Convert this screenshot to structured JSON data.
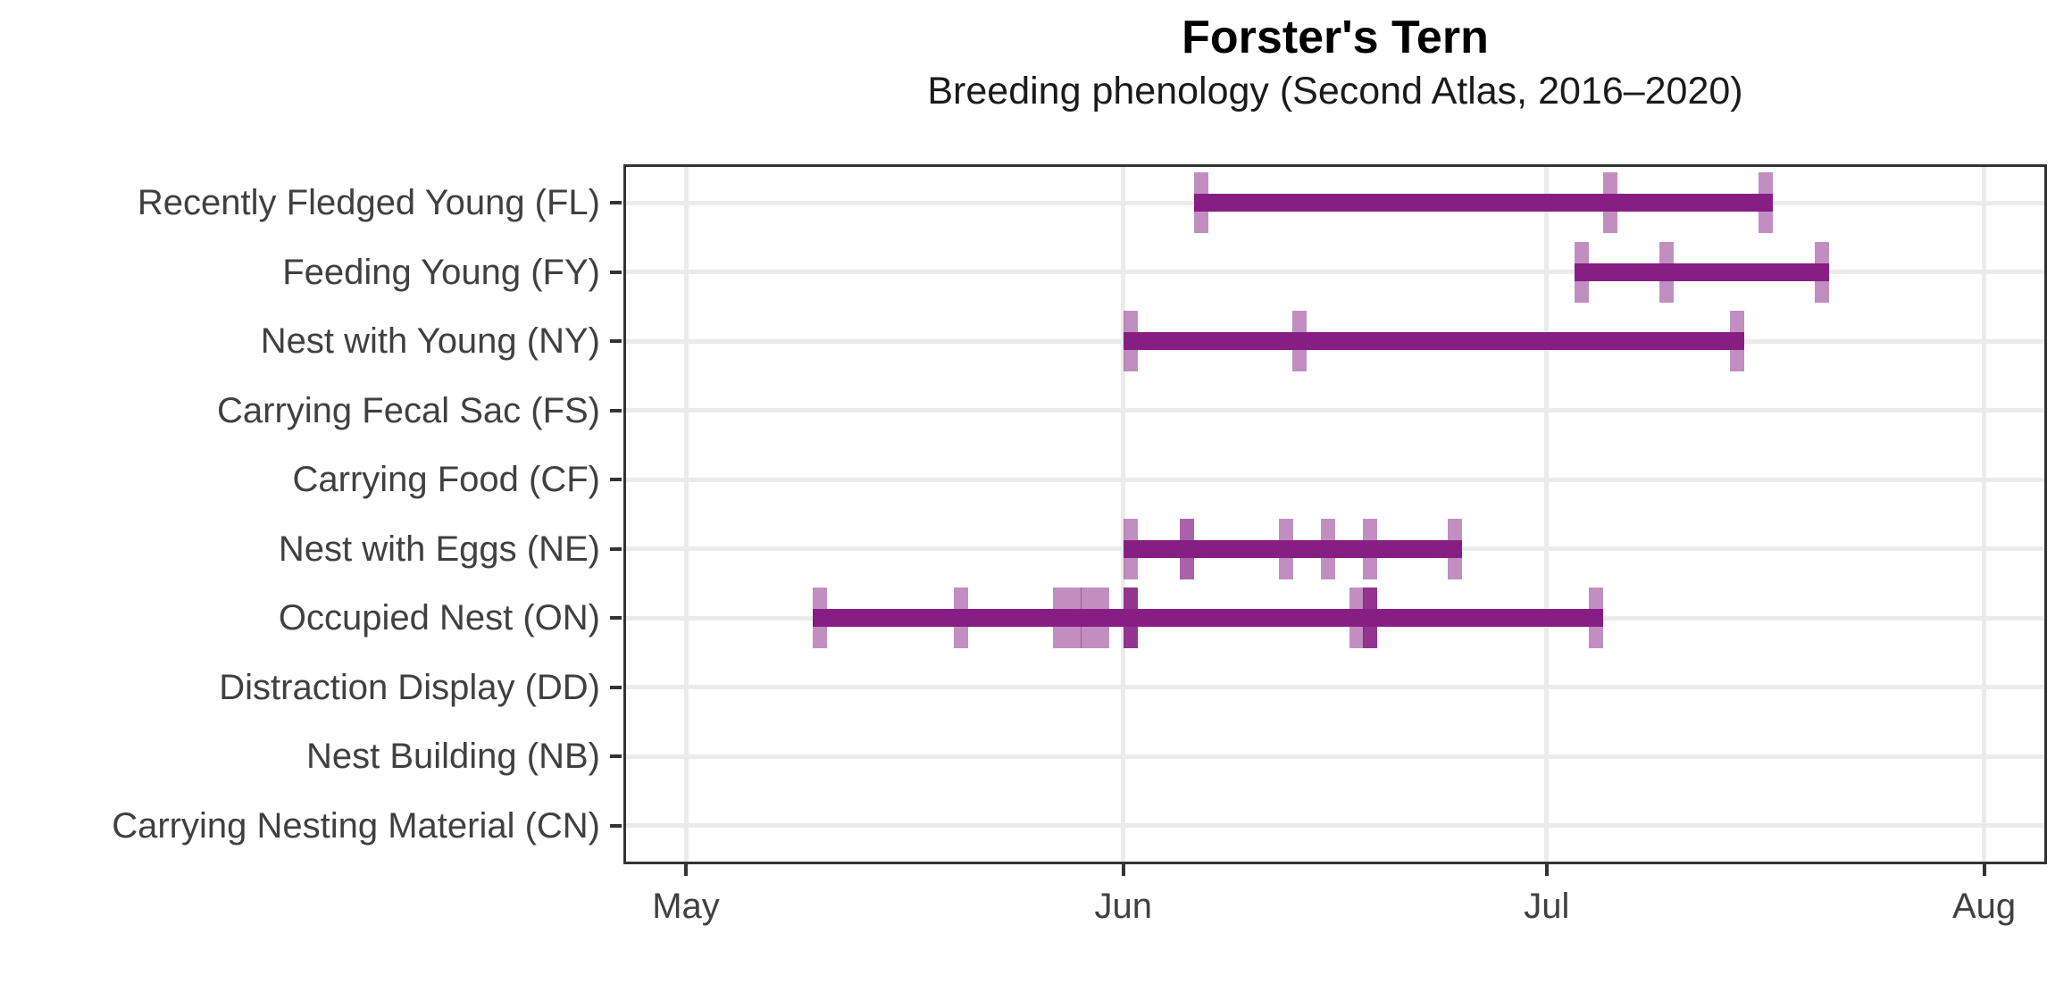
{
  "title": "Forster's Tern",
  "subtitle": "Breeding phenology (Second Atlas, 2016–2020)",
  "colors": {
    "bar": "#861E84",
    "observation_tick_base": "#861E84",
    "gridline": "#EBEBEB",
    "axis_line": "#333333",
    "axis_text": "#404040",
    "title_text": "#000000",
    "background": "#FFFFFF"
  },
  "chart_data": {
    "type": "bar",
    "subtype": "horizontal date-range (breeding phenology timeline)",
    "title": "Forster's Tern",
    "subtitle": "Breeding phenology (Second Atlas, 2016–2020)",
    "legend": "none",
    "x_axis": {
      "label": "",
      "tick_labels": [
        "May",
        "Jun",
        "Jul",
        "Aug"
      ],
      "range": [
        "late April",
        "early August"
      ],
      "gridlines": "vertical at month starts only"
    },
    "y_axis": {
      "label": "",
      "type": "category",
      "gridlines": "horizontal at each category"
    },
    "rows": [
      {
        "label": "Recently Fledged Young (FL)",
        "code": "FL",
        "range": {
          "start": "Jun 6",
          "end": "Jul 16"
        },
        "observations": [
          {
            "date": "Jun 6",
            "level": 1
          },
          {
            "date": "Jul 5",
            "level": 1
          },
          {
            "date": "Jul 16",
            "level": 1
          }
        ]
      },
      {
        "label": "Feeding Young (FY)",
        "code": "FY",
        "range": {
          "start": "Jul 3",
          "end": "Jul 20"
        },
        "observations": [
          {
            "date": "Jul 3",
            "level": 1
          },
          {
            "date": "Jul 9",
            "level": 1
          },
          {
            "date": "Jul 20",
            "level": 1
          }
        ]
      },
      {
        "label": "Nest with Young (NY)",
        "code": "NY",
        "range": {
          "start": "Jun 1",
          "end": "Jul 14"
        },
        "observations": [
          {
            "date": "Jun 1",
            "level": 1
          },
          {
            "date": "Jun 13",
            "level": 1
          },
          {
            "date": "Jul 14",
            "level": 1
          }
        ]
      },
      {
        "label": "Carrying Fecal Sac (FS)",
        "code": "FS",
        "range": null,
        "observations": []
      },
      {
        "label": "Carrying Food (CF)",
        "code": "CF",
        "range": null,
        "observations": []
      },
      {
        "label": "Nest with Eggs (NE)",
        "code": "NE",
        "range": {
          "start": "Jun 1",
          "end": "Jun 24"
        },
        "observations": [
          {
            "date": "Jun 1",
            "level": 1
          },
          {
            "date": "Jun 5",
            "level": 2
          },
          {
            "date": "Jun 12",
            "level": 1
          },
          {
            "date": "Jun 15",
            "level": 1
          },
          {
            "date": "Jun 18",
            "level": 1
          },
          {
            "date": "Jun 24",
            "level": 1
          }
        ]
      },
      {
        "label": "Occupied Nest (ON)",
        "code": "ON",
        "range": {
          "start": "May 10",
          "end": "Jul 4"
        },
        "observations": [
          {
            "date": "May 10",
            "level": 1
          },
          {
            "date": "May 20",
            "level": 1
          },
          {
            "date": "May 27",
            "level": 1
          },
          {
            "date": "May 28",
            "level": 1
          },
          {
            "date": "May 29",
            "level": 1
          },
          {
            "date": "May 30",
            "level": 1
          },
          {
            "date": "Jun 1",
            "level": 3
          },
          {
            "date": "Jun 17",
            "level": 1
          },
          {
            "date": "Jun 18",
            "level": 3
          },
          {
            "date": "Jul 4",
            "level": 1
          }
        ]
      },
      {
        "label": "Distraction Display (DD)",
        "code": "DD",
        "range": null,
        "observations": []
      },
      {
        "label": "Nest Building (NB)",
        "code": "NB",
        "range": null,
        "observations": []
      },
      {
        "label": "Carrying Nesting Material (CN)",
        "code": "CN",
        "range": null,
        "observations": []
      }
    ],
    "notes": "Dark bar spans first to last observation date per breeding code; translucent one-day tiles mark individual observation dates (darker tile = multiple records on that date)."
  }
}
